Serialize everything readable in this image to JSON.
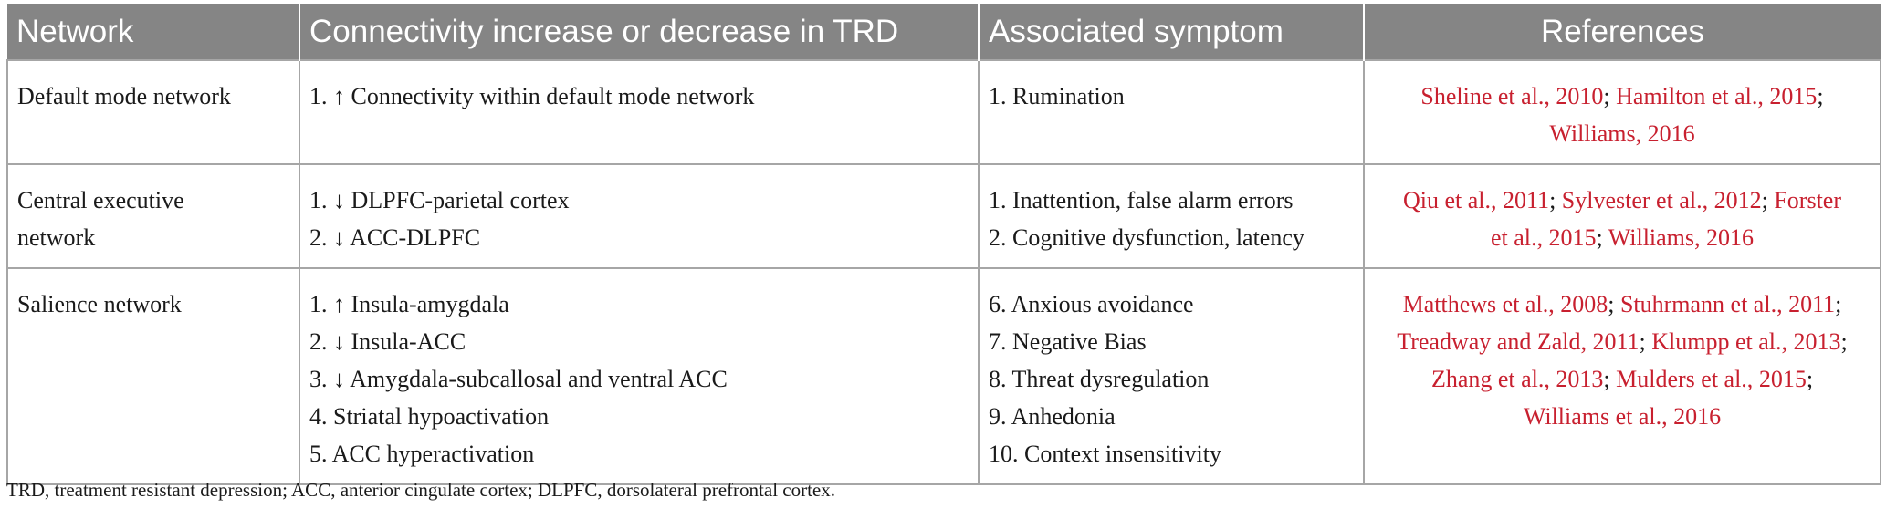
{
  "table": {
    "headers": [
      "Network",
      "Connectivity increase or decrease in TRD",
      "Associated symptom",
      "References"
    ],
    "rows": [
      {
        "network_lines": [
          "Default mode network"
        ],
        "connectivity": [
          "1. ↑ Connectivity within default mode network"
        ],
        "symptoms": [
          "1. Rumination"
        ],
        "ref_lines": [
          [
            {
              "author": "Sheline et al.,",
              "year": "2010",
              "sep": ";"
            },
            {
              "author": "Hamilton et al.,",
              "year": "2015",
              "sep": ";"
            }
          ],
          [
            {
              "author": "Williams,",
              "year": "2016",
              "sep": ""
            }
          ]
        ]
      },
      {
        "network_lines": [
          "Central executive",
          "network"
        ],
        "connectivity": [
          "1. ↓ DLPFC-parietal cortex",
          "2. ↓ ACC-DLPFC"
        ],
        "symptoms": [
          "1. Inattention, false alarm errors",
          "2. Cognitive dysfunction, latency"
        ],
        "ref_lines": [
          [
            {
              "author": "Qiu et al.,",
              "year": "2011",
              "sep": ";"
            },
            {
              "author": "Sylvester et al.,",
              "year": "2012",
              "sep": ";"
            },
            {
              "author": "Forster",
              "year": "",
              "sep": ""
            }
          ],
          [
            {
              "author": "et al.,",
              "year": "2015",
              "sep": ";"
            },
            {
              "author": "Williams,",
              "year": "2016",
              "sep": ""
            }
          ]
        ]
      },
      {
        "network_lines": [
          "Salience network"
        ],
        "connectivity": [
          "1. ↑ Insula-amygdala",
          "2. ↓ Insula-ACC",
          "3. ↓ Amygdala-subcallosal and ventral ACC",
          "4. Striatal hypoactivation",
          "5. ACC hyperactivation"
        ],
        "symptoms": [
          "6. Anxious avoidance",
          "7. Negative Bias",
          "8. Threat dysregulation",
          "9. Anhedonia",
          "10. Context insensitivity"
        ],
        "ref_lines": [
          [
            {
              "author": "Matthews et al.,",
              "year": "2008",
              "sep": ";"
            },
            {
              "author": "Stuhrmann et al.,",
              "year": "2011",
              "sep": ";"
            }
          ],
          [
            {
              "author": "Treadway and Zald,",
              "year": "2011",
              "sep": ";"
            },
            {
              "author": "Klumpp et al.,",
              "year": "2013",
              "sep": ";"
            }
          ],
          [
            {
              "author": "Zhang et al.,",
              "year": "2013",
              "sep": ";"
            },
            {
              "author": "Mulders et al.,",
              "year": "2015",
              "sep": ";"
            }
          ],
          [
            {
              "author": "Williams et al.,",
              "year": "2016",
              "sep": ""
            }
          ]
        ]
      }
    ]
  },
  "footnote": "TRD, treatment resistant depression; ACC, anterior cingulate cortex; DLPFC, dorsolateral prefrontal cortex.",
  "colors": {
    "header_bg": "#858585",
    "link": "#c8202f",
    "border": "#a6a6a6"
  }
}
